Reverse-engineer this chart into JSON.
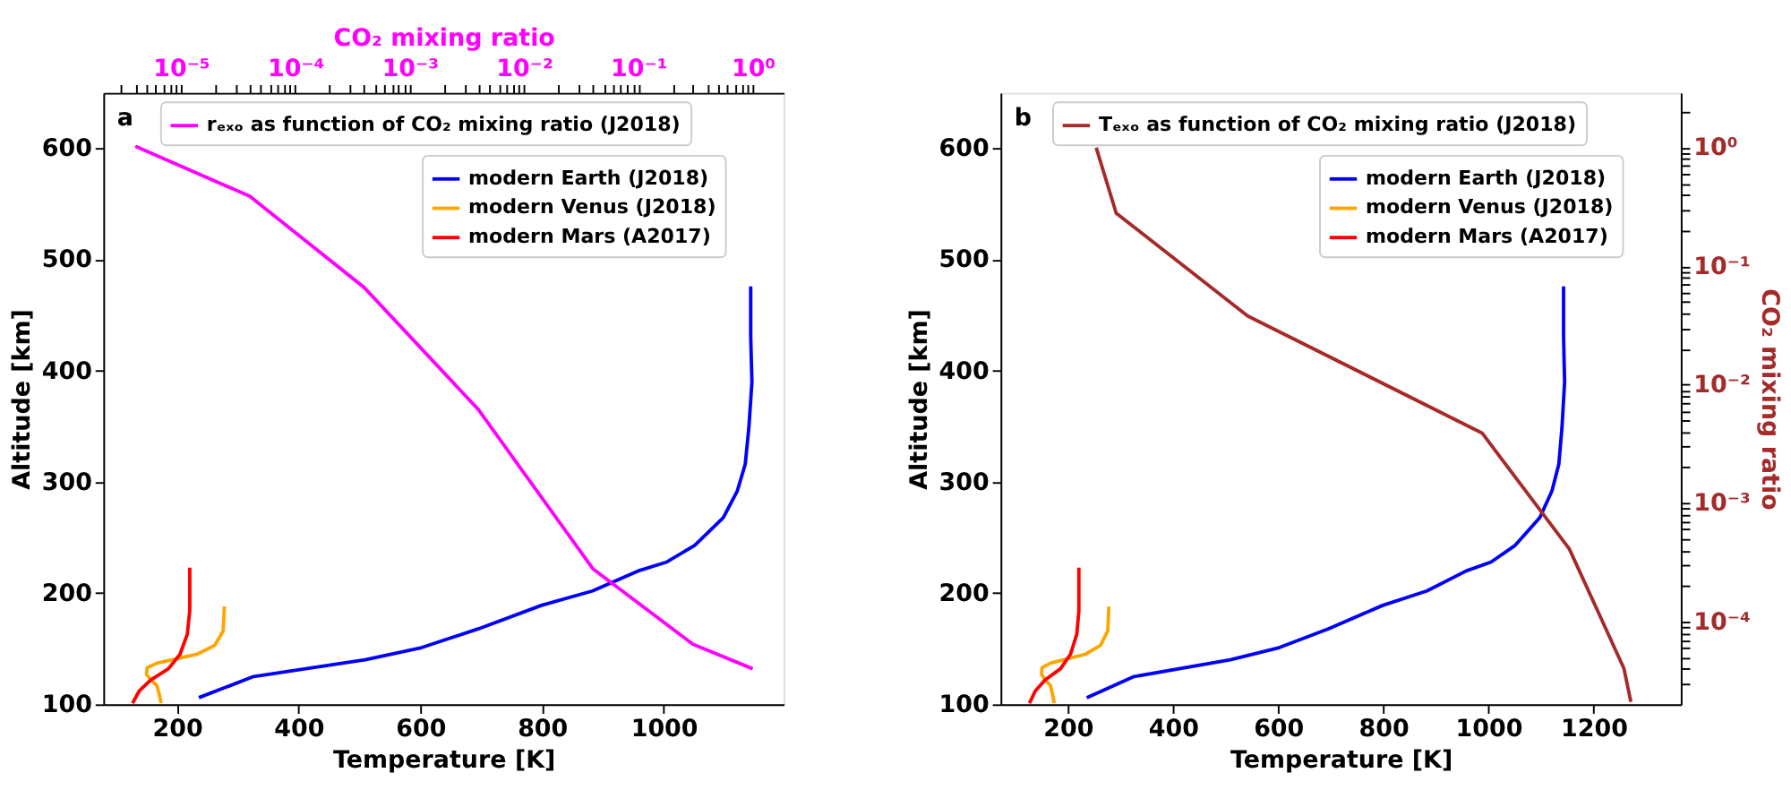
{
  "chart_data": [
    {
      "type": "line",
      "xlabel": "Temperature [K]",
      "ylabel": "Altitude [km]",
      "x2label": "CO₂ mixing ratio",
      "annotations": [
        "a"
      ],
      "legend": "top right",
      "log": "x2",
      "xlim": [
        79,
        1197
      ],
      "xticks": [
        200,
        400,
        600,
        800,
        1000
      ],
      "ylim": [
        100,
        650
      ],
      "yticks": [
        100,
        200,
        300,
        400,
        500,
        600
      ],
      "x2lim": [
        2.1e-06,
        1.86
      ],
      "x2ticks": [
        {
          "value": 3e-06,
          "label": null
        },
        {
          "value": 4e-06,
          "label": null
        },
        {
          "value": 5e-06,
          "label": null
        },
        {
          "value": 6e-06,
          "label": null
        },
        {
          "value": 7e-06,
          "label": null
        },
        {
          "value": 8e-06,
          "label": null
        },
        {
          "value": 9e-06,
          "label": null
        },
        {
          "value": 1e-05,
          "label": "10⁻⁵"
        },
        {
          "value": 2e-05,
          "label": null
        },
        {
          "value": 3e-05,
          "label": null
        },
        {
          "value": 4e-05,
          "label": null
        },
        {
          "value": 5e-05,
          "label": null
        },
        {
          "value": 6e-05,
          "label": null
        },
        {
          "value": 7e-05,
          "label": null
        },
        {
          "value": 8e-05,
          "label": null
        },
        {
          "value": 9e-05,
          "label": null
        },
        {
          "value": 0.0001,
          "label": "10⁻⁴"
        },
        {
          "value": 0.0002,
          "label": null
        },
        {
          "value": 0.0003,
          "label": null
        },
        {
          "value": 0.0004,
          "label": null
        },
        {
          "value": 0.0005,
          "label": null
        },
        {
          "value": 0.0006,
          "label": null
        },
        {
          "value": 0.0007,
          "label": null
        },
        {
          "value": 0.0008,
          "label": null
        },
        {
          "value": 0.0009,
          "label": null
        },
        {
          "value": 0.001,
          "label": "10⁻³"
        },
        {
          "value": 0.002,
          "label": null
        },
        {
          "value": 0.003,
          "label": null
        },
        {
          "value": 0.004,
          "label": null
        },
        {
          "value": 0.005,
          "label": null
        },
        {
          "value": 0.006,
          "label": null
        },
        {
          "value": 0.007,
          "label": null
        },
        {
          "value": 0.008,
          "label": null
        },
        {
          "value": 0.009,
          "label": null
        },
        {
          "value": 0.01,
          "label": "10⁻²"
        },
        {
          "value": 0.02,
          "label": null
        },
        {
          "value": 0.03,
          "label": null
        },
        {
          "value": 0.04,
          "label": null
        },
        {
          "value": 0.05,
          "label": null
        },
        {
          "value": 0.06,
          "label": null
        },
        {
          "value": 0.07,
          "label": null
        },
        {
          "value": 0.08,
          "label": null
        },
        {
          "value": 0.09,
          "label": null
        },
        {
          "value": 0.1,
          "label": "10⁻¹"
        },
        {
          "value": 0.2,
          "label": null
        },
        {
          "value": 0.3,
          "label": null
        },
        {
          "value": 0.4,
          "label": null
        },
        {
          "value": 0.5,
          "label": null
        },
        {
          "value": 0.6,
          "label": null
        },
        {
          "value": 0.7,
          "label": null
        },
        {
          "value": 0.8,
          "label": null
        },
        {
          "value": 0.9,
          "label": null
        },
        {
          "value": 1,
          "label": "10⁰"
        }
      ],
      "series": [
        {
          "name": "rₑₓₒ as function of CO₂ mixing ratio (J2018)",
          "color": "#ff00ff",
          "axis": "x2",
          "x": [
            4e-06,
            4e-05,
            0.0004,
            0.004,
            0.04,
            0.3,
            1
          ],
          "values": [
            602,
            557,
            475,
            365,
            222,
            154,
            132
          ]
        },
        {
          "name": "modern Earth (J2018)",
          "color": "#0000ff",
          "x": [
            236,
            326,
            509,
            602,
            696,
            799,
            883,
            958,
            1005,
            1051,
            1098,
            1121,
            1134,
            1140,
            1145,
            1143,
            1143
          ],
          "values": [
            106,
            125,
            140,
            151,
            168,
            189,
            202,
            220,
            228,
            243,
            268,
            292,
            316,
            349,
            390,
            431,
            476
          ]
        },
        {
          "name": "modern Venus (J2018)",
          "color": "#ffa500",
          "x": [
            278,
            276,
            262,
            233,
            200,
            167,
            151,
            150,
            157,
            167,
            171,
            174
          ],
          "values": [
            188,
            166,
            153,
            145,
            141,
            137,
            133,
            127,
            122,
            117,
            109,
            101
          ]
        },
        {
          "name": "modern Mars (A2017)",
          "color": "#ff0000",
          "x": [
            221,
            221,
            217,
            205,
            186,
            157,
            138,
            127
          ],
          "values": [
            223,
            184,
            163,
            145,
            132,
            122,
            112,
            101
          ]
        }
      ]
    },
    {
      "type": "line",
      "xlabel": "Temperature [K]",
      "ylabel": "Altitude [km]",
      "y2label": "CO₂ mixing ratio",
      "annotations": [
        "b"
      ],
      "legend": "top right",
      "log": "y2",
      "xlim": [
        72,
        1366
      ],
      "xticks": [
        200,
        400,
        600,
        800,
        1000,
        1200
      ],
      "ylim": [
        100,
        650
      ],
      "yticks": [
        100,
        200,
        300,
        400,
        500,
        600
      ],
      "y2lim": [
        2e-05,
        2.9
      ],
      "y2ticks": [
        {
          "value": 3e-05,
          "label": null
        },
        {
          "value": 4e-05,
          "label": null
        },
        {
          "value": 5e-05,
          "label": null
        },
        {
          "value": 6e-05,
          "label": null
        },
        {
          "value": 7e-05,
          "label": null
        },
        {
          "value": 8e-05,
          "label": null
        },
        {
          "value": 9e-05,
          "label": null
        },
        {
          "value": 0.0001,
          "label": "10⁻⁴"
        },
        {
          "value": 0.0002,
          "label": null
        },
        {
          "value": 0.0003,
          "label": null
        },
        {
          "value": 0.0004,
          "label": null
        },
        {
          "value": 0.0005,
          "label": null
        },
        {
          "value": 0.0006,
          "label": null
        },
        {
          "value": 0.0007,
          "label": null
        },
        {
          "value": 0.0008,
          "label": null
        },
        {
          "value": 0.0009,
          "label": null
        },
        {
          "value": 0.001,
          "label": "10⁻³"
        },
        {
          "value": 0.002,
          "label": null
        },
        {
          "value": 0.003,
          "label": null
        },
        {
          "value": 0.004,
          "label": null
        },
        {
          "value": 0.005,
          "label": null
        },
        {
          "value": 0.006,
          "label": null
        },
        {
          "value": 0.007,
          "label": null
        },
        {
          "value": 0.008,
          "label": null
        },
        {
          "value": 0.009,
          "label": null
        },
        {
          "value": 0.01,
          "label": "10⁻²"
        },
        {
          "value": 0.02,
          "label": null
        },
        {
          "value": 0.03,
          "label": null
        },
        {
          "value": 0.04,
          "label": null
        },
        {
          "value": 0.05,
          "label": null
        },
        {
          "value": 0.06,
          "label": null
        },
        {
          "value": 0.07,
          "label": null
        },
        {
          "value": 0.08,
          "label": null
        },
        {
          "value": 0.09,
          "label": null
        },
        {
          "value": 0.1,
          "label": "10⁻¹"
        },
        {
          "value": 0.2,
          "label": null
        },
        {
          "value": 0.3,
          "label": null
        },
        {
          "value": 0.4,
          "label": null
        },
        {
          "value": 0.5,
          "label": null
        },
        {
          "value": 0.6,
          "label": null
        },
        {
          "value": 0.7,
          "label": null
        },
        {
          "value": 0.8,
          "label": null
        },
        {
          "value": 0.9,
          "label": null
        },
        {
          "value": 1,
          "label": "10⁰"
        },
        {
          "value": 2,
          "label": null
        }
      ],
      "series": [
        {
          "name": "Tₑₓₒ as function of CO₂ mixing ratio (J2018)",
          "color": "#a52a2a",
          "axis": "y2",
          "x": [
            254,
            292,
            542,
            988,
            1154,
            1258,
            1271
          ],
          "values": [
            1,
            0.28,
            0.038,
            0.0039,
            0.00041,
            4e-05,
            2.1e-05
          ]
        },
        {
          "name": "modern Earth (J2018)",
          "color": "#0000ff",
          "x": [
            236,
            326,
            509,
            602,
            696,
            799,
            883,
            958,
            1005,
            1051,
            1098,
            1121,
            1134,
            1140,
            1145,
            1143,
            1143
          ],
          "values": [
            106,
            125,
            140,
            151,
            168,
            189,
            202,
            220,
            228,
            243,
            268,
            292,
            316,
            349,
            390,
            431,
            476
          ]
        },
        {
          "name": "modern Venus (J2018)",
          "color": "#ffa500",
          "x": [
            278,
            276,
            262,
            233,
            200,
            167,
            151,
            150,
            157,
            167,
            171,
            174
          ],
          "values": [
            188,
            166,
            153,
            145,
            141,
            137,
            133,
            127,
            122,
            117,
            109,
            101
          ]
        },
        {
          "name": "modern Mars (A2017)",
          "color": "#ff0000",
          "x": [
            221,
            221,
            217,
            205,
            186,
            157,
            138,
            127
          ],
          "values": [
            223,
            184,
            163,
            145,
            132,
            122,
            112,
            101
          ]
        }
      ]
    }
  ]
}
